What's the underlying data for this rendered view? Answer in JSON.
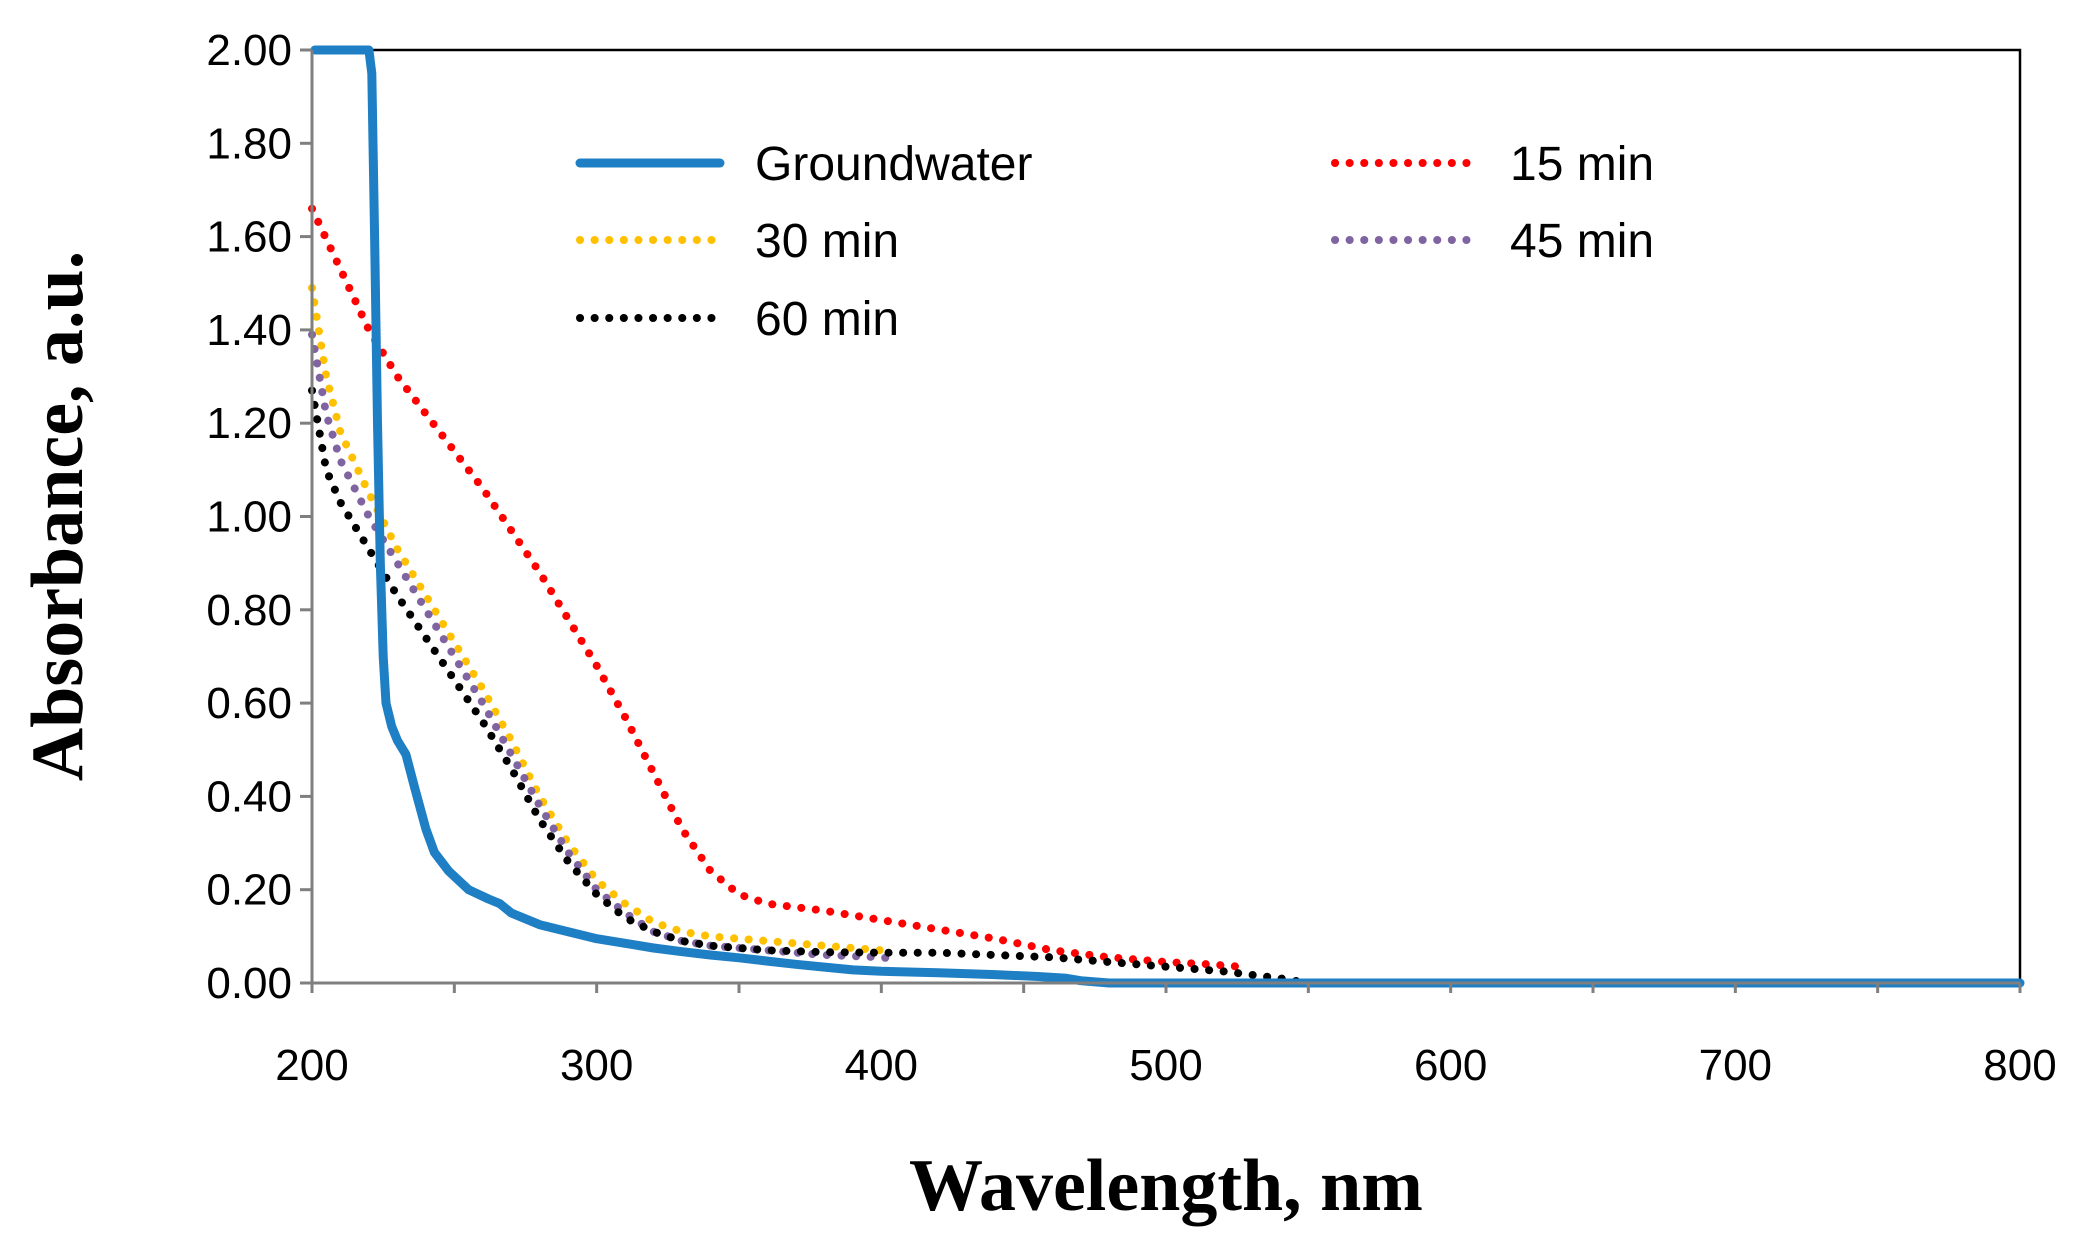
{
  "chart_data": {
    "type": "line",
    "title": "",
    "xlabel": "Wavelength, nm",
    "ylabel": "Absorbance, a.u.",
    "xlim": [
      200,
      800
    ],
    "ylim": [
      0,
      2.0
    ],
    "x_ticks": [
      "200",
      "300",
      "400",
      "500",
      "600",
      "700",
      "800"
    ],
    "x_tick_values": [
      200,
      300,
      400,
      500,
      600,
      700,
      800
    ],
    "x_minor_step": 50,
    "y_ticks": [
      "0.00",
      "0.20",
      "0.40",
      "0.60",
      "0.80",
      "1.00",
      "1.20",
      "1.40",
      "1.60",
      "1.80",
      "2.00"
    ],
    "y_tick_values": [
      0,
      0.2,
      0.4,
      0.6,
      0.8,
      1.0,
      1.2,
      1.4,
      1.6,
      1.8,
      2.0
    ],
    "grid": false,
    "legend_position": "top-center",
    "series": [
      {
        "name": "Groundwater",
        "color": "#1f7fc4",
        "style": "solid",
        "points": [
          [
            201,
            2.0
          ],
          [
            203,
            2.0
          ],
          [
            210,
            2.0
          ],
          [
            217,
            2.0
          ],
          [
            220,
            2.0
          ],
          [
            221,
            1.95
          ],
          [
            222,
            1.6
          ],
          [
            223,
            1.2
          ],
          [
            224,
            0.9
          ],
          [
            225,
            0.7
          ],
          [
            226,
            0.6
          ],
          [
            228,
            0.55
          ],
          [
            230,
            0.52
          ],
          [
            233,
            0.49
          ],
          [
            236,
            0.42
          ],
          [
            240,
            0.33
          ],
          [
            243,
            0.28
          ],
          [
            248,
            0.24
          ],
          [
            255,
            0.2
          ],
          [
            262,
            0.18
          ],
          [
            266,
            0.17
          ],
          [
            270,
            0.15
          ],
          [
            280,
            0.125
          ],
          [
            290,
            0.11
          ],
          [
            300,
            0.095
          ],
          [
            310,
            0.085
          ],
          [
            320,
            0.075
          ],
          [
            330,
            0.067
          ],
          [
            340,
            0.06
          ],
          [
            350,
            0.054
          ],
          [
            360,
            0.047
          ],
          [
            370,
            0.04
          ],
          [
            380,
            0.034
          ],
          [
            390,
            0.028
          ],
          [
            400,
            0.025
          ],
          [
            420,
            0.022
          ],
          [
            440,
            0.018
          ],
          [
            455,
            0.014
          ],
          [
            465,
            0.01
          ],
          [
            470,
            0.005
          ],
          [
            480,
            0.0
          ],
          [
            520,
            0.0
          ],
          [
            600,
            0.0
          ],
          [
            700,
            0.0
          ],
          [
            800,
            0.0
          ]
        ]
      },
      {
        "name": "15 min",
        "color": "#ff0000",
        "style": "dotted",
        "points": [
          [
            200,
            1.66
          ],
          [
            210,
            1.53
          ],
          [
            220,
            1.4
          ],
          [
            230,
            1.3
          ],
          [
            240,
            1.22
          ],
          [
            250,
            1.14
          ],
          [
            260,
            1.06
          ],
          [
            270,
            0.97
          ],
          [
            280,
            0.88
          ],
          [
            290,
            0.78
          ],
          [
            300,
            0.68
          ],
          [
            310,
            0.57
          ],
          [
            320,
            0.45
          ],
          [
            330,
            0.33
          ],
          [
            340,
            0.24
          ],
          [
            350,
            0.19
          ],
          [
            360,
            0.17
          ],
          [
            380,
            0.155
          ],
          [
            400,
            0.135
          ],
          [
            420,
            0.115
          ],
          [
            440,
            0.095
          ],
          [
            460,
            0.07
          ],
          [
            480,
            0.055
          ],
          [
            500,
            0.045
          ],
          [
            515,
            0.04
          ],
          [
            526,
            0.035
          ]
        ]
      },
      {
        "name": "30 min",
        "color": "#ffc000",
        "style": "dotted",
        "points": [
          [
            200,
            1.49
          ],
          [
            205,
            1.3
          ],
          [
            210,
            1.18
          ],
          [
            220,
            1.05
          ],
          [
            230,
            0.93
          ],
          [
            240,
            0.83
          ],
          [
            250,
            0.73
          ],
          [
            260,
            0.63
          ],
          [
            270,
            0.52
          ],
          [
            280,
            0.4
          ],
          [
            290,
            0.3
          ],
          [
            300,
            0.22
          ],
          [
            310,
            0.17
          ],
          [
            320,
            0.13
          ],
          [
            330,
            0.11
          ],
          [
            340,
            0.1
          ],
          [
            360,
            0.09
          ],
          [
            380,
            0.08
          ],
          [
            400,
            0.07
          ],
          [
            404,
            0.065
          ]
        ]
      },
      {
        "name": "45 min",
        "color": "#8064a2",
        "style": "dotted",
        "points": [
          [
            200,
            1.39
          ],
          [
            205,
            1.22
          ],
          [
            210,
            1.12
          ],
          [
            220,
            1.0
          ],
          [
            230,
            0.9
          ],
          [
            240,
            0.8
          ],
          [
            250,
            0.7
          ],
          [
            260,
            0.6
          ],
          [
            270,
            0.49
          ],
          [
            280,
            0.38
          ],
          [
            290,
            0.28
          ],
          [
            300,
            0.2
          ],
          [
            310,
            0.15
          ],
          [
            320,
            0.11
          ],
          [
            330,
            0.09
          ],
          [
            340,
            0.08
          ],
          [
            360,
            0.07
          ],
          [
            380,
            0.06
          ],
          [
            400,
            0.055
          ],
          [
            404,
            0.052
          ]
        ]
      },
      {
        "name": "60 min",
        "color": "#000000",
        "style": "dotted",
        "points": [
          [
            200,
            1.27
          ],
          [
            205,
            1.1
          ],
          [
            210,
            1.03
          ],
          [
            220,
            0.93
          ],
          [
            230,
            0.83
          ],
          [
            240,
            0.74
          ],
          [
            250,
            0.65
          ],
          [
            260,
            0.56
          ],
          [
            270,
            0.46
          ],
          [
            280,
            0.35
          ],
          [
            290,
            0.26
          ],
          [
            300,
            0.19
          ],
          [
            310,
            0.14
          ],
          [
            320,
            0.11
          ],
          [
            330,
            0.09
          ],
          [
            340,
            0.08
          ],
          [
            360,
            0.07
          ],
          [
            380,
            0.066
          ],
          [
            400,
            0.065
          ],
          [
            420,
            0.065
          ],
          [
            440,
            0.06
          ],
          [
            460,
            0.055
          ],
          [
            480,
            0.045
          ],
          [
            500,
            0.035
          ],
          [
            520,
            0.025
          ],
          [
            540,
            0.01
          ],
          [
            550,
            0.0
          ],
          [
            600,
            0.0
          ],
          [
            700,
            0.0
          ],
          [
            800,
            0.0
          ]
        ]
      }
    ]
  }
}
